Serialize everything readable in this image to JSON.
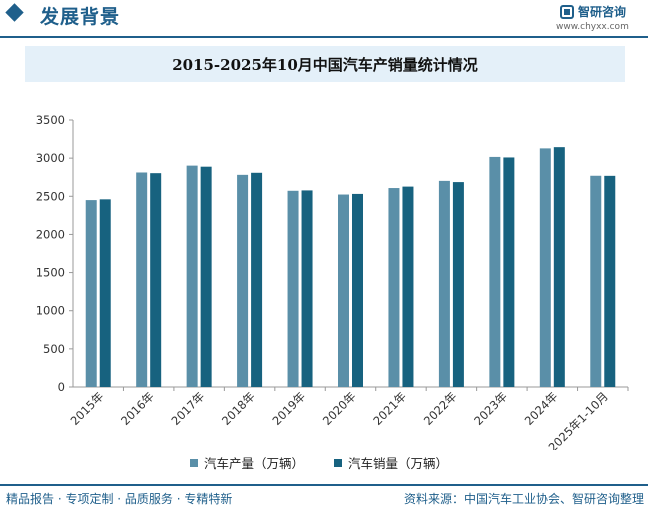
{
  "header": {
    "section_title": "发展背景",
    "brand_name": "智研咨询",
    "brand_url": "www.chyxx.com"
  },
  "chart_title": "2015-2025年10月中国汽车产销量统计情况",
  "chart_data": {
    "type": "bar",
    "title": "2015-2025年10月中国汽车产销量统计情况",
    "categories": [
      "2015年",
      "2016年",
      "2017年",
      "2018年",
      "2019年",
      "2020年",
      "2021年",
      "2022年",
      "2023年",
      "2024年",
      "2025年1-10月"
    ],
    "series": [
      {
        "name": "汽车产量（万辆）",
        "color": "#5a8fa8",
        "values": [
          2450,
          2812,
          2902,
          2781,
          2572,
          2523,
          2608,
          2702,
          3016,
          3128,
          2769
        ]
      },
      {
        "name": "汽车销量（万辆）",
        "color": "#17627f",
        "values": [
          2460,
          2803,
          2888,
          2808,
          2577,
          2531,
          2627,
          2686,
          3009,
          3144,
          2768
        ]
      }
    ],
    "yticks": [
      0,
      500,
      1000,
      1500,
      2000,
      2500,
      3000,
      3500
    ],
    "ylim": [
      0,
      3500
    ],
    "grid": false,
    "legend": "bottom-center"
  },
  "footer": {
    "left": "精品报告 · 专项定制 · 品质服务 · 专精特新",
    "right": "资料来源：中国汽车工业协会、智研咨询整理"
  }
}
